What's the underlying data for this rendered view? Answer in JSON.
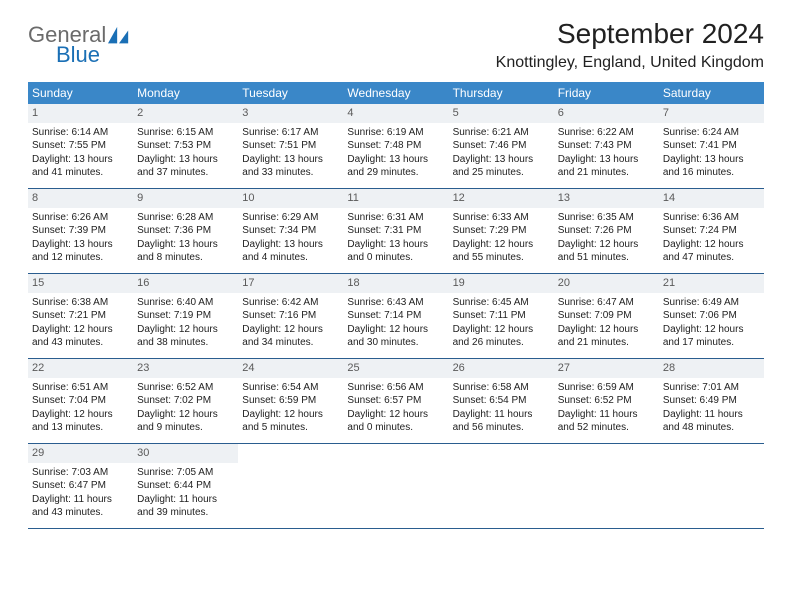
{
  "brand": {
    "word1": "General",
    "word2": "Blue"
  },
  "colors": {
    "header_bg": "#3a87c8",
    "daynum_bg": "#eef1f4",
    "rule": "#2a5d8f",
    "logo_blue": "#1a6fb5",
    "logo_gray": "#6b6b6b"
  },
  "title": "September 2024",
  "subtitle": "Knottingley, England, United Kingdom",
  "dow": [
    "Sunday",
    "Monday",
    "Tuesday",
    "Wednesday",
    "Thursday",
    "Friday",
    "Saturday"
  ],
  "weeks": [
    [
      {
        "n": "1",
        "sr": "6:14 AM",
        "ss": "7:55 PM",
        "dl": "13 hours and 41 minutes."
      },
      {
        "n": "2",
        "sr": "6:15 AM",
        "ss": "7:53 PM",
        "dl": "13 hours and 37 minutes."
      },
      {
        "n": "3",
        "sr": "6:17 AM",
        "ss": "7:51 PM",
        "dl": "13 hours and 33 minutes."
      },
      {
        "n": "4",
        "sr": "6:19 AM",
        "ss": "7:48 PM",
        "dl": "13 hours and 29 minutes."
      },
      {
        "n": "5",
        "sr": "6:21 AM",
        "ss": "7:46 PM",
        "dl": "13 hours and 25 minutes."
      },
      {
        "n": "6",
        "sr": "6:22 AM",
        "ss": "7:43 PM",
        "dl": "13 hours and 21 minutes."
      },
      {
        "n": "7",
        "sr": "6:24 AM",
        "ss": "7:41 PM",
        "dl": "13 hours and 16 minutes."
      }
    ],
    [
      {
        "n": "8",
        "sr": "6:26 AM",
        "ss": "7:39 PM",
        "dl": "13 hours and 12 minutes."
      },
      {
        "n": "9",
        "sr": "6:28 AM",
        "ss": "7:36 PM",
        "dl": "13 hours and 8 minutes."
      },
      {
        "n": "10",
        "sr": "6:29 AM",
        "ss": "7:34 PM",
        "dl": "13 hours and 4 minutes."
      },
      {
        "n": "11",
        "sr": "6:31 AM",
        "ss": "7:31 PM",
        "dl": "13 hours and 0 minutes."
      },
      {
        "n": "12",
        "sr": "6:33 AM",
        "ss": "7:29 PM",
        "dl": "12 hours and 55 minutes."
      },
      {
        "n": "13",
        "sr": "6:35 AM",
        "ss": "7:26 PM",
        "dl": "12 hours and 51 minutes."
      },
      {
        "n": "14",
        "sr": "6:36 AM",
        "ss": "7:24 PM",
        "dl": "12 hours and 47 minutes."
      }
    ],
    [
      {
        "n": "15",
        "sr": "6:38 AM",
        "ss": "7:21 PM",
        "dl": "12 hours and 43 minutes."
      },
      {
        "n": "16",
        "sr": "6:40 AM",
        "ss": "7:19 PM",
        "dl": "12 hours and 38 minutes."
      },
      {
        "n": "17",
        "sr": "6:42 AM",
        "ss": "7:16 PM",
        "dl": "12 hours and 34 minutes."
      },
      {
        "n": "18",
        "sr": "6:43 AM",
        "ss": "7:14 PM",
        "dl": "12 hours and 30 minutes."
      },
      {
        "n": "19",
        "sr": "6:45 AM",
        "ss": "7:11 PM",
        "dl": "12 hours and 26 minutes."
      },
      {
        "n": "20",
        "sr": "6:47 AM",
        "ss": "7:09 PM",
        "dl": "12 hours and 21 minutes."
      },
      {
        "n": "21",
        "sr": "6:49 AM",
        "ss": "7:06 PM",
        "dl": "12 hours and 17 minutes."
      }
    ],
    [
      {
        "n": "22",
        "sr": "6:51 AM",
        "ss": "7:04 PM",
        "dl": "12 hours and 13 minutes."
      },
      {
        "n": "23",
        "sr": "6:52 AM",
        "ss": "7:02 PM",
        "dl": "12 hours and 9 minutes."
      },
      {
        "n": "24",
        "sr": "6:54 AM",
        "ss": "6:59 PM",
        "dl": "12 hours and 5 minutes."
      },
      {
        "n": "25",
        "sr": "6:56 AM",
        "ss": "6:57 PM",
        "dl": "12 hours and 0 minutes."
      },
      {
        "n": "26",
        "sr": "6:58 AM",
        "ss": "6:54 PM",
        "dl": "11 hours and 56 minutes."
      },
      {
        "n": "27",
        "sr": "6:59 AM",
        "ss": "6:52 PM",
        "dl": "11 hours and 52 minutes."
      },
      {
        "n": "28",
        "sr": "7:01 AM",
        "ss": "6:49 PM",
        "dl": "11 hours and 48 minutes."
      }
    ],
    [
      {
        "n": "29",
        "sr": "7:03 AM",
        "ss": "6:47 PM",
        "dl": "11 hours and 43 minutes."
      },
      {
        "n": "30",
        "sr": "7:05 AM",
        "ss": "6:44 PM",
        "dl": "11 hours and 39 minutes."
      },
      null,
      null,
      null,
      null,
      null
    ]
  ],
  "labels": {
    "sunrise": "Sunrise:",
    "sunset": "Sunset:",
    "daylight": "Daylight:"
  }
}
